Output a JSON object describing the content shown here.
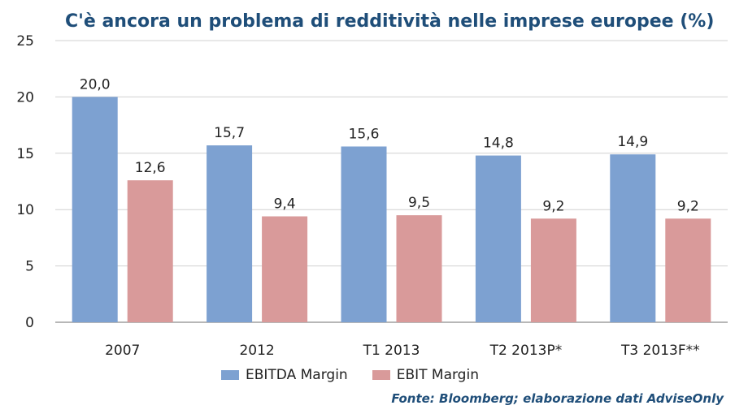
{
  "chart_data": {
    "type": "bar",
    "title": "C'è ancora un problema di redditività nelle imprese europee (%)",
    "categories": [
      "2007",
      "2012",
      "T1 2013",
      "T2 2013P*",
      "T3 2013F**"
    ],
    "series": [
      {
        "name": "EBITDA Margin",
        "values": [
          20.0,
          15.7,
          15.6,
          14.8,
          14.9
        ],
        "labels": [
          "20,0",
          "15,7",
          "15,6",
          "14,8",
          "14,9"
        ],
        "color": "#7da1d1"
      },
      {
        "name": "EBIT Margin",
        "values": [
          12.6,
          9.4,
          9.5,
          9.2,
          9.2
        ],
        "labels": [
          "12,6",
          "9,4",
          "9,5",
          "9,2",
          "9,2"
        ],
        "color": "#d99a9a"
      }
    ],
    "ylim": [
      0,
      25
    ],
    "yticks": [
      0,
      5,
      10,
      15,
      20,
      25
    ],
    "grid": true,
    "legend_position": "bottom",
    "source": "Fonte: Bloomberg; elaborazione dati AdviseOnly"
  }
}
